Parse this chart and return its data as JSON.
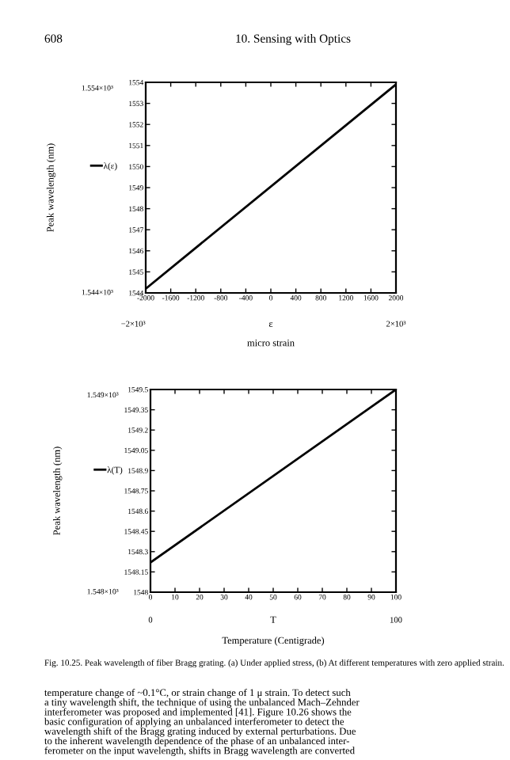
{
  "chart_data": [
    {
      "type": "line",
      "xlabel": "micro strain",
      "ylabel": "Peak wavelength (nm)",
      "x": [
        -2000,
        2000
      ],
      "series": [
        {
          "name": "λ(ε)",
          "color": "#000000",
          "values": [
            1544.2,
            1553.9
          ]
        }
      ],
      "xlim": [
        -2000,
        2000
      ],
      "xticks": [
        -2000,
        -1600,
        -1200,
        -800,
        -400,
        0,
        400,
        800,
        1200,
        1600,
        2000
      ],
      "ylim": [
        1544,
        1554
      ],
      "yticks": [
        1544,
        1545,
        1546,
        1547,
        1548,
        1549,
        1550,
        1551,
        1552,
        1553,
        1554
      ],
      "legend": "left",
      "grid": false,
      "line_style": "solid",
      "annotations": [
        "608",
        "10. Sensing with Optics",
        "1.554×10³",
        "1.544×10³",
        "−2×10³",
        "ε",
        "2×10³"
      ]
    },
    {
      "type": "line",
      "xlabel": "Temperature (Centigrade)",
      "ylabel": "Peak wavelength (nm)",
      "x": [
        0,
        100
      ],
      "series": [
        {
          "name": "λ(T)",
          "color": "#000000",
          "values": [
            1548.22,
            1549.5
          ]
        }
      ],
      "xlim": [
        0,
        100
      ],
      "xticks": [
        0,
        10,
        20,
        30,
        40,
        50,
        60,
        70,
        80,
        90,
        100
      ],
      "ylim": [
        1548,
        1549.5
      ],
      "yticks": [
        1548,
        1548.15,
        1548.3,
        1548.45,
        1548.6,
        1548.75,
        1548.9,
        1549.05,
        1549.2,
        1549.35,
        1549.5
      ],
      "legend": "left",
      "grid": false,
      "line_style": "solid",
      "annotations": [
        "1.549×10³",
        "1.548×10³",
        "0",
        "T",
        "100",
        "Fig. 10.25. Peak wavelength of fiber Bragg grating. (a) Under applied stress, (b) At different temperatures with zero applied strain.",
        "temperature change of ~0.1°C, or strain change of 1 μ strain. To detect such\na tiny wavelength shift, the technique of using the unbalanced Mach–Zehnder\ninterferometer was proposed and implemented [41]. Figure 10.26 shows the\nbasic configuration of applying an unbalanced interferometer to detect the\nwavelength shift of the Bragg grating induced by external perturbations. Due\nto the inherent wavelength dependence of the phase of an unbalanced inter-\nferometer on the input wavelength, shifts in Bragg wavelength are converted"
      ]
    }
  ]
}
